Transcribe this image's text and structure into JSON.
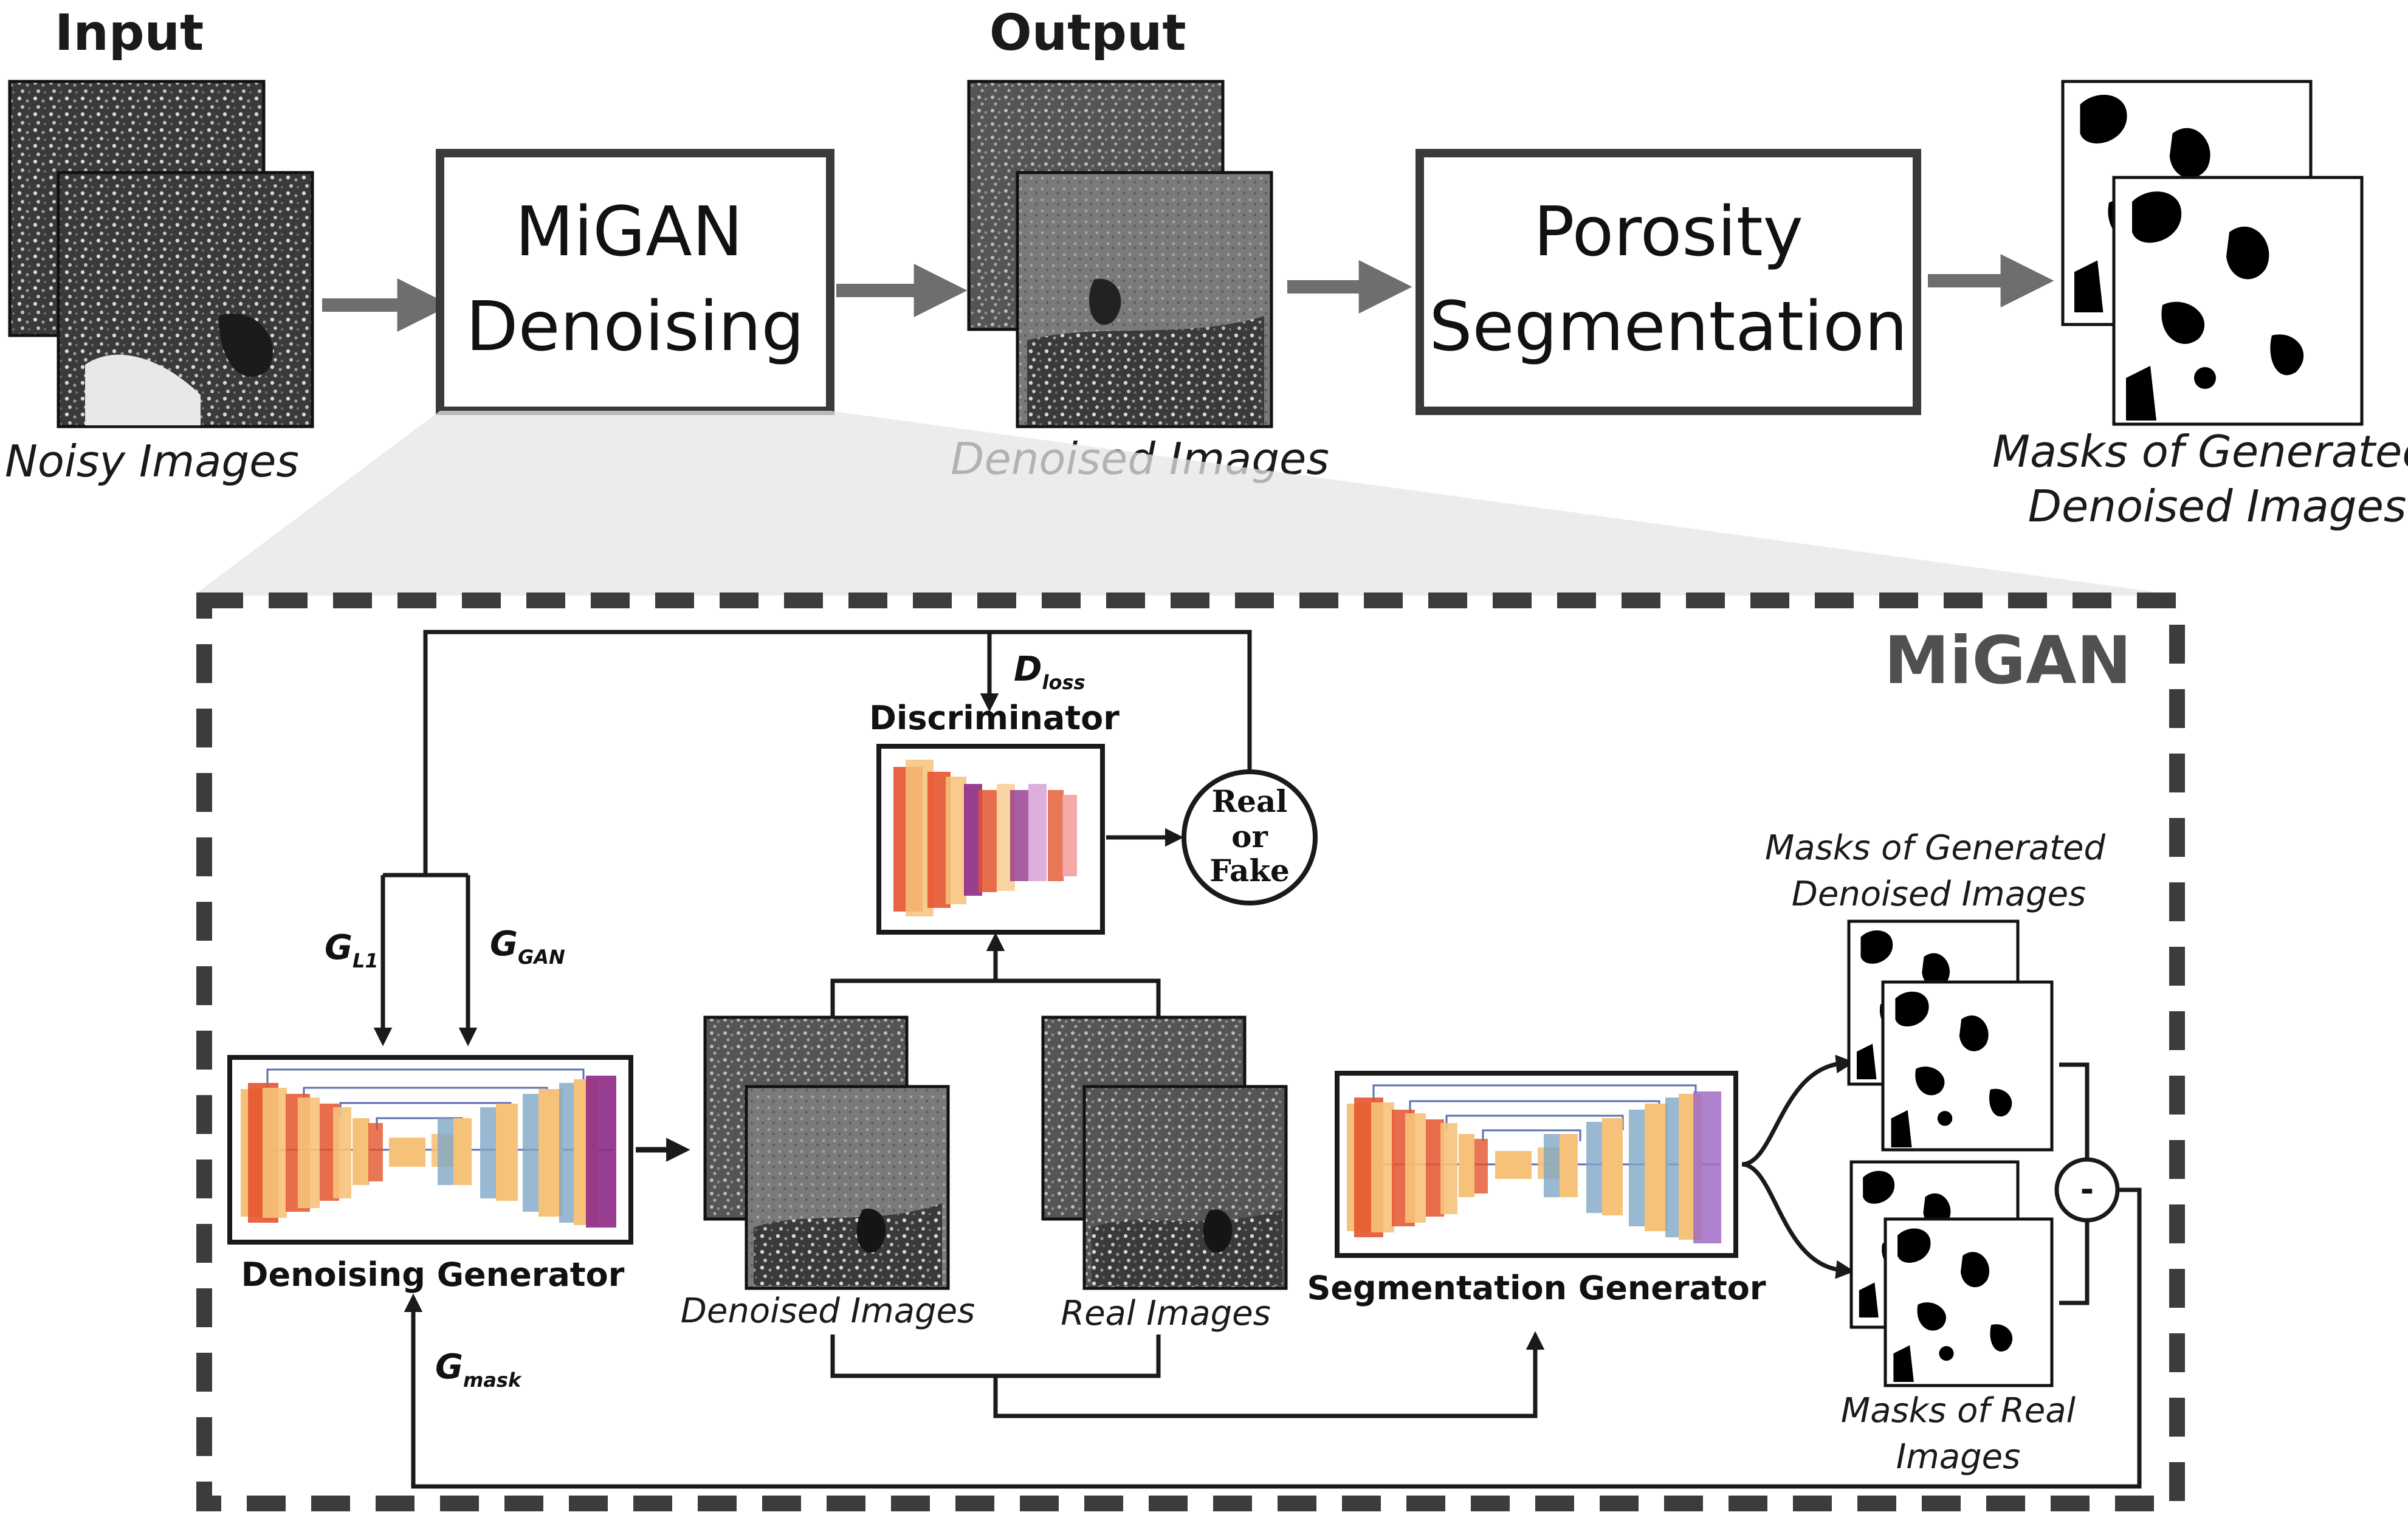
{
  "top": {
    "input_heading": "Input",
    "output_heading": "Output",
    "noisy_caption": "Noisy Images",
    "denoise_box_line1": "MiGAN",
    "denoise_box_line2": "Denoising",
    "denoised_caption": "Denoised Images",
    "seg_box_line1": "Porosity",
    "seg_box_line2": "Segmentation",
    "masks_caption_line1": "Masks of Generated",
    "masks_caption_line2": "Denoised Images"
  },
  "migan": {
    "title": "MiGAN",
    "d_loss": "D",
    "d_loss_sub": "loss",
    "discriminator_label": "Discriminator",
    "real_or_fake": [
      "Real",
      "or",
      "Fake"
    ],
    "g_l1": "G",
    "g_l1_sub": "L1",
    "g_gan": "G",
    "g_gan_sub": "GAN",
    "g_mask": "G",
    "g_mask_sub": "mask",
    "denoising_generator_label": "Denoising Generator",
    "denoised_images_caption": "Denoised Images",
    "real_images_caption": "Real Images",
    "segmentation_generator_label": "Segmentation Generator",
    "masks_generated_line1": "Masks of Generated",
    "masks_generated_line2": "Denoised Images",
    "masks_real_line1": "Masks of Real",
    "masks_real_line2": "Images",
    "minus_symbol": "-"
  },
  "colors": {
    "arrow_gray": "#6e6e6e",
    "dash_gray": "#3c3c3c",
    "funnel_gray": "#e6e6e6",
    "layer_orange": "#f6c27a",
    "layer_red": "#e4542d",
    "layer_purple": "#8e2a86",
    "layer_blue": "#7ea7c6"
  }
}
